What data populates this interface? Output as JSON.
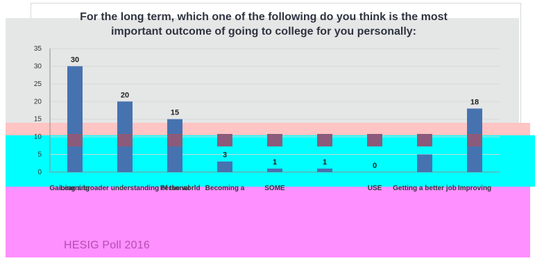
{
  "footer": {
    "source": "HESIG Poll 2016"
  },
  "chart_data": {
    "type": "bar",
    "title_lines": [
      "For the long term, which one of the following do you think is the most",
      "important outcome of going to college for you personally:"
    ],
    "xlabel": "",
    "ylabel": "",
    "ylim": [
      0,
      35
    ],
    "yticks": [
      35,
      30,
      25,
      20,
      15,
      10,
      5,
      0
    ],
    "categories": [
      "Learning",
      "Gaining a broader understanding of the world",
      "Personal",
      "Becoming a",
      "SOME",
      "",
      "USE",
      "Getting a better job",
      "Improving"
    ],
    "values": [
      30,
      20,
      15,
      3,
      1,
      1,
      0,
      5,
      18
    ],
    "data_labels": [
      "30",
      "20",
      "15",
      "3",
      "1",
      "1",
      "0",
      "",
      "18"
    ],
    "grid": true,
    "legend": "none",
    "colors": {
      "bar": "#4672b0",
      "bar_shadow": "#8c5a7a",
      "axis": "#8f8f8f",
      "gridline": "#d8d8d8",
      "title": "#2f3440",
      "footer": "#b34db3"
    }
  }
}
